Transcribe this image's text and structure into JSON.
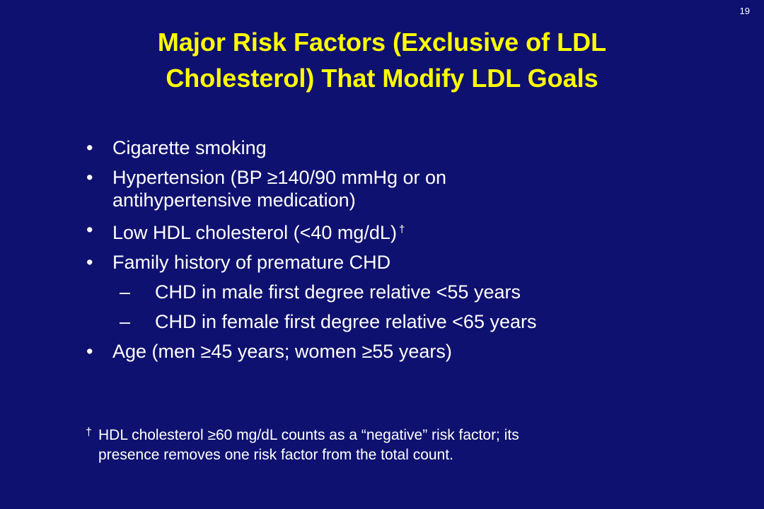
{
  "slide_number": "19",
  "title": {
    "line1": "Major Risk Factors (Exclusive of LDL",
    "line2": "Cholesterol) That Modify LDL Goals"
  },
  "bullets": {
    "smoking": "Cigarette smoking",
    "hypertension_1": "Hypertension (BP ≥140/90 mmHg or on",
    "hypertension_2": "antihypertensive medication)",
    "hdl": "Low HDL cholesterol (<40 mg/dL)",
    "hdl_mark": "†",
    "family": "Family history of premature CHD",
    "family_male": "CHD in male first degree relative <55 years",
    "family_female": "CHD in female first degree relative <65 years",
    "age": "Age (men ≥45 years; women ≥55 years)"
  },
  "bullet_symbol": "•",
  "dash_symbol": "–",
  "footnote": {
    "mark": "†",
    "line1": "HDL cholesterol ≥60 mg/dL counts as a  “negative” risk factor; its",
    "line2": "presence removes one risk factor from the total count."
  },
  "colors": {
    "background": "#0f1170",
    "title": "#ffff00",
    "text": "#ffffff"
  }
}
